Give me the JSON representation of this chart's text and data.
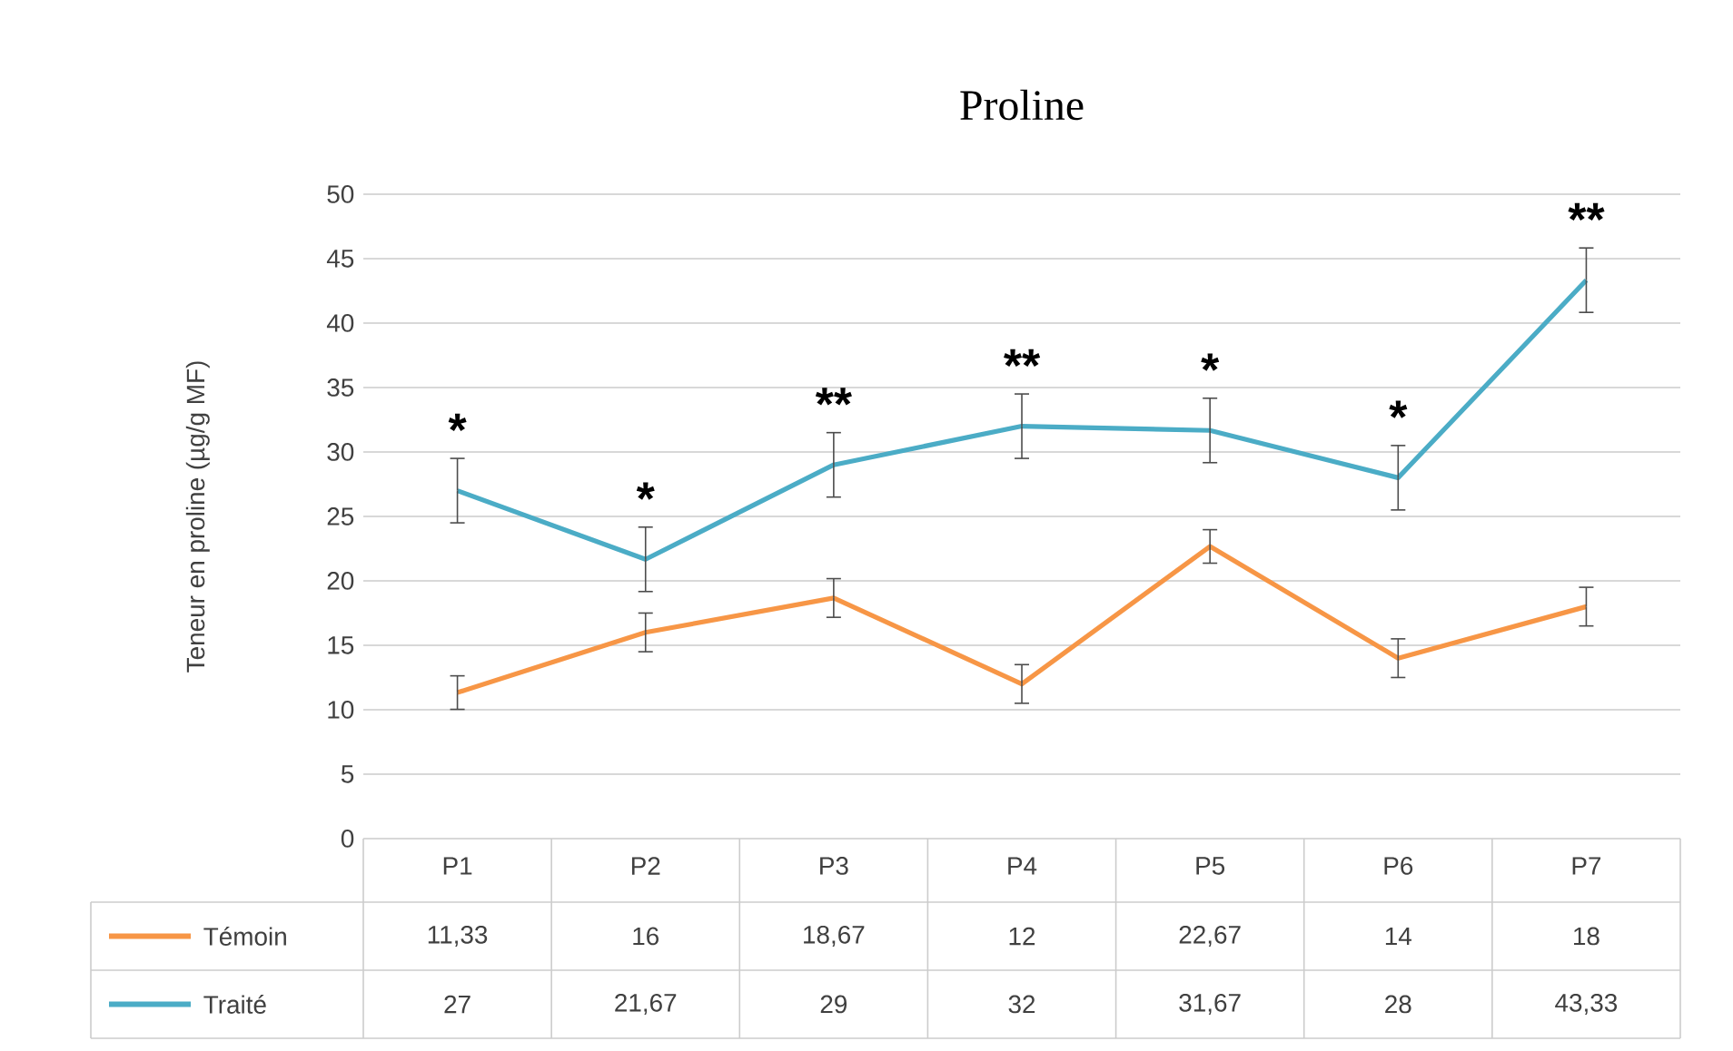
{
  "chart_data": {
    "type": "line",
    "title": "Proline",
    "ylabel": "Teneur en proline (µg/g MF)",
    "categories": [
      "P1",
      "P2",
      "P3",
      "P4",
      "P5",
      "P6",
      "P7"
    ],
    "series": [
      {
        "name": "Témoin",
        "color": "#f79646",
        "values": [
          11.33,
          16,
          18.67,
          12,
          22.67,
          14,
          18
        ],
        "errors": [
          1.3,
          1.5,
          1.5,
          1.5,
          1.3,
          1.5,
          1.5
        ],
        "value_labels": [
          "11,33",
          "16",
          "18,67",
          "12",
          "22,67",
          "14",
          "18"
        ]
      },
      {
        "name": "Traité",
        "color": "#4bacc6",
        "values": [
          27,
          21.67,
          29,
          32,
          31.67,
          28,
          43.33
        ],
        "errors": [
          2.5,
          2.5,
          2.5,
          2.5,
          2.5,
          2.5,
          2.5
        ],
        "value_labels": [
          "27",
          "21,67",
          "29",
          "32",
          "31,67",
          "28",
          "43,33"
        ]
      }
    ],
    "ylim": [
      0,
      50
    ],
    "yticks": [
      0,
      5,
      10,
      15,
      20,
      25,
      30,
      35,
      40,
      45,
      50
    ],
    "grid": "y",
    "legend": "bottom",
    "marker": "none",
    "line_style": "solid",
    "annotations": [
      "*",
      "*",
      "**",
      "**",
      "*",
      "*",
      "**"
    ]
  }
}
